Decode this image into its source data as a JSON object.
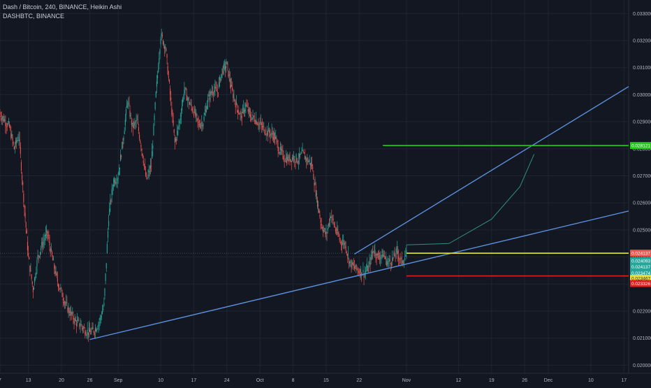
{
  "header": {
    "symbol_line": "Dash / Bitcoin, 240, BINANCE, Heikin Ashi",
    "series_line": "DASHBTC, BINANCE"
  },
  "colors": {
    "background": "#131722",
    "grid": "#1f2430",
    "bull": "#26a69a",
    "bear": "#ef5350",
    "trend": "#5b8fdd",
    "green_level": "#22c91a",
    "yellow_level": "#e6e33b",
    "red_level": "#e01d1d"
  },
  "chart_data": {
    "type": "candlestick",
    "ylim": [
      0.0197,
      0.0335
    ],
    "xlim": [
      "2018-08-07",
      "2018-12-18"
    ],
    "y_ticks": [
      "0.020000",
      "0.021000",
      "0.022000",
      "0.023000",
      "0.024000",
      "0.025000",
      "0.026000",
      "0.027000",
      "0.028000",
      "0.029000",
      "0.030000",
      "0.031000",
      "0.032000",
      "0.033000"
    ],
    "x_ticks": [
      {
        "label": "7",
        "date": "2018-08-07"
      },
      {
        "label": "13",
        "date": "2018-08-13"
      },
      {
        "label": "20",
        "date": "2018-08-20"
      },
      {
        "label": "26",
        "date": "2018-08-26"
      },
      {
        "label": "Sep",
        "date": "2018-09-01"
      },
      {
        "label": "10",
        "date": "2018-09-10"
      },
      {
        "label": "17",
        "date": "2018-09-17"
      },
      {
        "label": "24",
        "date": "2018-09-24"
      },
      {
        "label": "Oct",
        "date": "2018-10-01"
      },
      {
        "label": "8",
        "date": "2018-10-08"
      },
      {
        "label": "15",
        "date": "2018-10-15"
      },
      {
        "label": "22",
        "date": "2018-10-22"
      },
      {
        "label": "Nov",
        "date": "2018-11-01"
      },
      {
        "label": "12",
        "date": "2018-11-12"
      },
      {
        "label": "19",
        "date": "2018-11-19"
      },
      {
        "label": "26",
        "date": "2018-11-26"
      },
      {
        "label": "Dec",
        "date": "2018-12-01"
      },
      {
        "label": "10",
        "date": "2018-12-10"
      },
      {
        "label": "17",
        "date": "2018-12-17"
      }
    ],
    "price_path": [
      [
        "2018-08-07",
        0.0293
      ],
      [
        "2018-08-09",
        0.0288
      ],
      [
        "2018-08-10",
        0.028
      ],
      [
        "2018-08-11",
        0.0285
      ],
      [
        "2018-08-12",
        0.0262
      ],
      [
        "2018-08-13",
        0.024
      ],
      [
        "2018-08-14",
        0.0228
      ],
      [
        "2018-08-15",
        0.024
      ],
      [
        "2018-08-16",
        0.0245
      ],
      [
        "2018-08-17",
        0.0249
      ],
      [
        "2018-08-18",
        0.024
      ],
      [
        "2018-08-19",
        0.0232
      ],
      [
        "2018-08-20",
        0.0227
      ],
      [
        "2018-08-21",
        0.0222
      ],
      [
        "2018-08-22",
        0.0219
      ],
      [
        "2018-08-23",
        0.0216
      ],
      [
        "2018-08-24",
        0.0215
      ],
      [
        "2018-08-25",
        0.0213
      ],
      [
        "2018-08-26",
        0.0212
      ],
      [
        "2018-08-27",
        0.0213
      ],
      [
        "2018-08-28",
        0.0216
      ],
      [
        "2018-08-29",
        0.0222
      ],
      [
        "2018-08-30",
        0.0255
      ],
      [
        "2018-08-31",
        0.0268
      ],
      [
        "2018-09-01",
        0.027
      ],
      [
        "2018-09-02",
        0.0283
      ],
      [
        "2018-09-03",
        0.0298
      ],
      [
        "2018-09-04",
        0.0288
      ],
      [
        "2018-09-05",
        0.029
      ],
      [
        "2018-09-06",
        0.028
      ],
      [
        "2018-09-07",
        0.0268
      ],
      [
        "2018-09-08",
        0.0274
      ],
      [
        "2018-09-09",
        0.03
      ],
      [
        "2018-09-10",
        0.0322
      ],
      [
        "2018-09-11",
        0.0318
      ],
      [
        "2018-09-12",
        0.03
      ],
      [
        "2018-09-13",
        0.0282
      ],
      [
        "2018-09-14",
        0.029
      ],
      [
        "2018-09-15",
        0.0302
      ],
      [
        "2018-09-16",
        0.0297
      ],
      [
        "2018-09-17",
        0.0294
      ],
      [
        "2018-09-18",
        0.0289
      ],
      [
        "2018-09-19",
        0.029
      ],
      [
        "2018-09-20",
        0.0298
      ],
      [
        "2018-09-21",
        0.0302
      ],
      [
        "2018-09-22",
        0.0301
      ],
      [
        "2018-09-23",
        0.0309
      ],
      [
        "2018-09-24",
        0.0311
      ],
      [
        "2018-09-25",
        0.0302
      ],
      [
        "2018-09-26",
        0.0296
      ],
      [
        "2018-09-27",
        0.0292
      ],
      [
        "2018-09-28",
        0.0296
      ],
      [
        "2018-09-29",
        0.0292
      ],
      [
        "2018-09-30",
        0.0291
      ],
      [
        "2018-10-01",
        0.0289
      ],
      [
        "2018-10-02",
        0.0287
      ],
      [
        "2018-10-03",
        0.0286
      ],
      [
        "2018-10-04",
        0.0285
      ],
      [
        "2018-10-05",
        0.028
      ],
      [
        "2018-10-06",
        0.0277
      ],
      [
        "2018-10-07",
        0.0276
      ],
      [
        "2018-10-08",
        0.0277
      ],
      [
        "2018-10-09",
        0.0276
      ],
      [
        "2018-10-10",
        0.0278
      ],
      [
        "2018-10-11",
        0.0276
      ],
      [
        "2018-10-12",
        0.0274
      ],
      [
        "2018-10-13",
        0.0262
      ],
      [
        "2018-10-14",
        0.0252
      ],
      [
        "2018-10-15",
        0.0248
      ],
      [
        "2018-10-16",
        0.0256
      ],
      [
        "2018-10-17",
        0.025
      ],
      [
        "2018-10-18",
        0.0246
      ],
      [
        "2018-10-19",
        0.0245
      ],
      [
        "2018-10-20",
        0.0238
      ],
      [
        "2018-10-21",
        0.0236
      ],
      [
        "2018-10-22",
        0.0235
      ],
      [
        "2018-10-23",
        0.0234
      ],
      [
        "2018-10-24",
        0.0236
      ],
      [
        "2018-10-25",
        0.0243
      ],
      [
        "2018-10-26",
        0.024
      ],
      [
        "2018-10-27",
        0.0241
      ],
      [
        "2018-10-28",
        0.0238
      ],
      [
        "2018-10-29",
        0.0239
      ],
      [
        "2018-10-30",
        0.0242
      ],
      [
        "2018-10-31",
        0.0238
      ],
      [
        "2018-11-01",
        0.0241
      ]
    ],
    "trend_lines": [
      {
        "from": [
          "2018-08-26",
          0.02095
        ],
        "to": [
          "2018-12-18",
          0.0257
        ]
      },
      {
        "from": [
          "2018-10-21",
          0.02411
        ],
        "to": [
          "2018-12-18",
          0.0303
        ]
      }
    ],
    "projection_curve": [
      [
        "2018-11-01",
        0.02445
      ],
      [
        "2018-11-10",
        0.0245
      ],
      [
        "2018-11-19",
        0.0254
      ],
      [
        "2018-11-25",
        0.0266
      ],
      [
        "2018-11-28",
        0.0278
      ]
    ],
    "horizontal_levels": [
      {
        "name": "green",
        "y": 0.02812,
        "from": "2018-10-27"
      },
      {
        "name": "yellow",
        "y": 0.02414,
        "from": "2018-11-01"
      },
      {
        "name": "red",
        "y": 0.0233,
        "from": "2018-11-01"
      }
    ],
    "current_price_line": 0.02414,
    "price_tags": [
      {
        "text": "0.028121",
        "bg": "#22c91a",
        "fg": "#ffffff",
        "y": 0.02812
      },
      {
        "text": "0.024137",
        "bg": "#ef5350",
        "fg": "#ffffff",
        "y": 0.02414
      },
      {
        "text": "0.024093",
        "bg": "#26a69a",
        "fg": "#ffffff",
        "y": 0.02386
      },
      {
        "text": "0.024137",
        "bg": "#26a69a",
        "fg": "#ffffff",
        "y": 0.02364
      },
      {
        "text": "0.023474",
        "bg": "#26a69a",
        "fg": "#ffffff",
        "y": 0.02341
      },
      {
        "text": "0.023467",
        "bg": "#e6e33b",
        "fg": "#333333",
        "y": 0.02321
      },
      {
        "text": "0.023326",
        "bg": "#e01d1d",
        "fg": "#ffffff",
        "y": 0.02302
      }
    ]
  }
}
